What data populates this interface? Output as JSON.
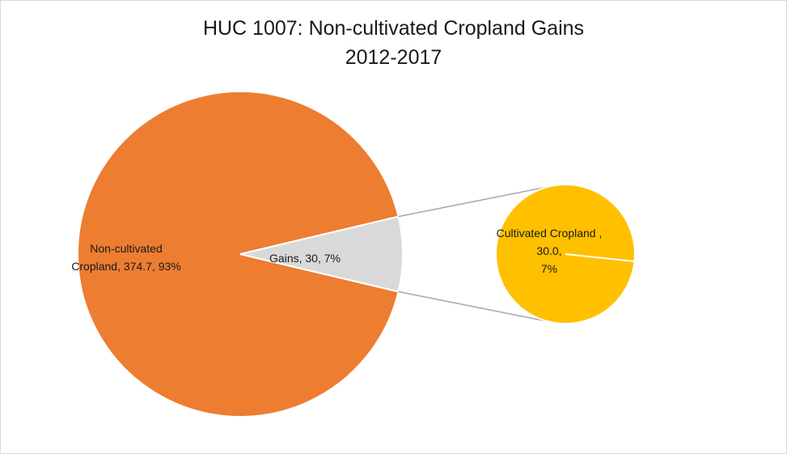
{
  "chart_data": {
    "type": "pie",
    "variant": "pie-of-pie",
    "title": "HUC 1007: Non-cultivated Cropland Gains",
    "subtitle": "2012-2017",
    "main_pie": {
      "slices": [
        {
          "label_lines": [
            "Non-cultivated",
            "Cropland, 374.7, 93%"
          ],
          "value": 374.7,
          "percent": 93,
          "color": "#ED7D31"
        },
        {
          "label_lines": [
            "Gains, 30, 7%"
          ],
          "value": 30,
          "percent": 7,
          "color": "#D9D9D9"
        }
      ]
    },
    "secondary_pie": {
      "slices": [
        {
          "label_lines": [
            "Cultivated Cropland ,",
            "30.0,",
            "7%"
          ],
          "value": 30.0,
          "percent": 7,
          "color": "#FFC000"
        }
      ]
    },
    "legend": "none",
    "colors": {
      "connector": "#A6A6A6",
      "border": "#D9D9D9",
      "slice_edge": "#FFFFFF"
    }
  }
}
